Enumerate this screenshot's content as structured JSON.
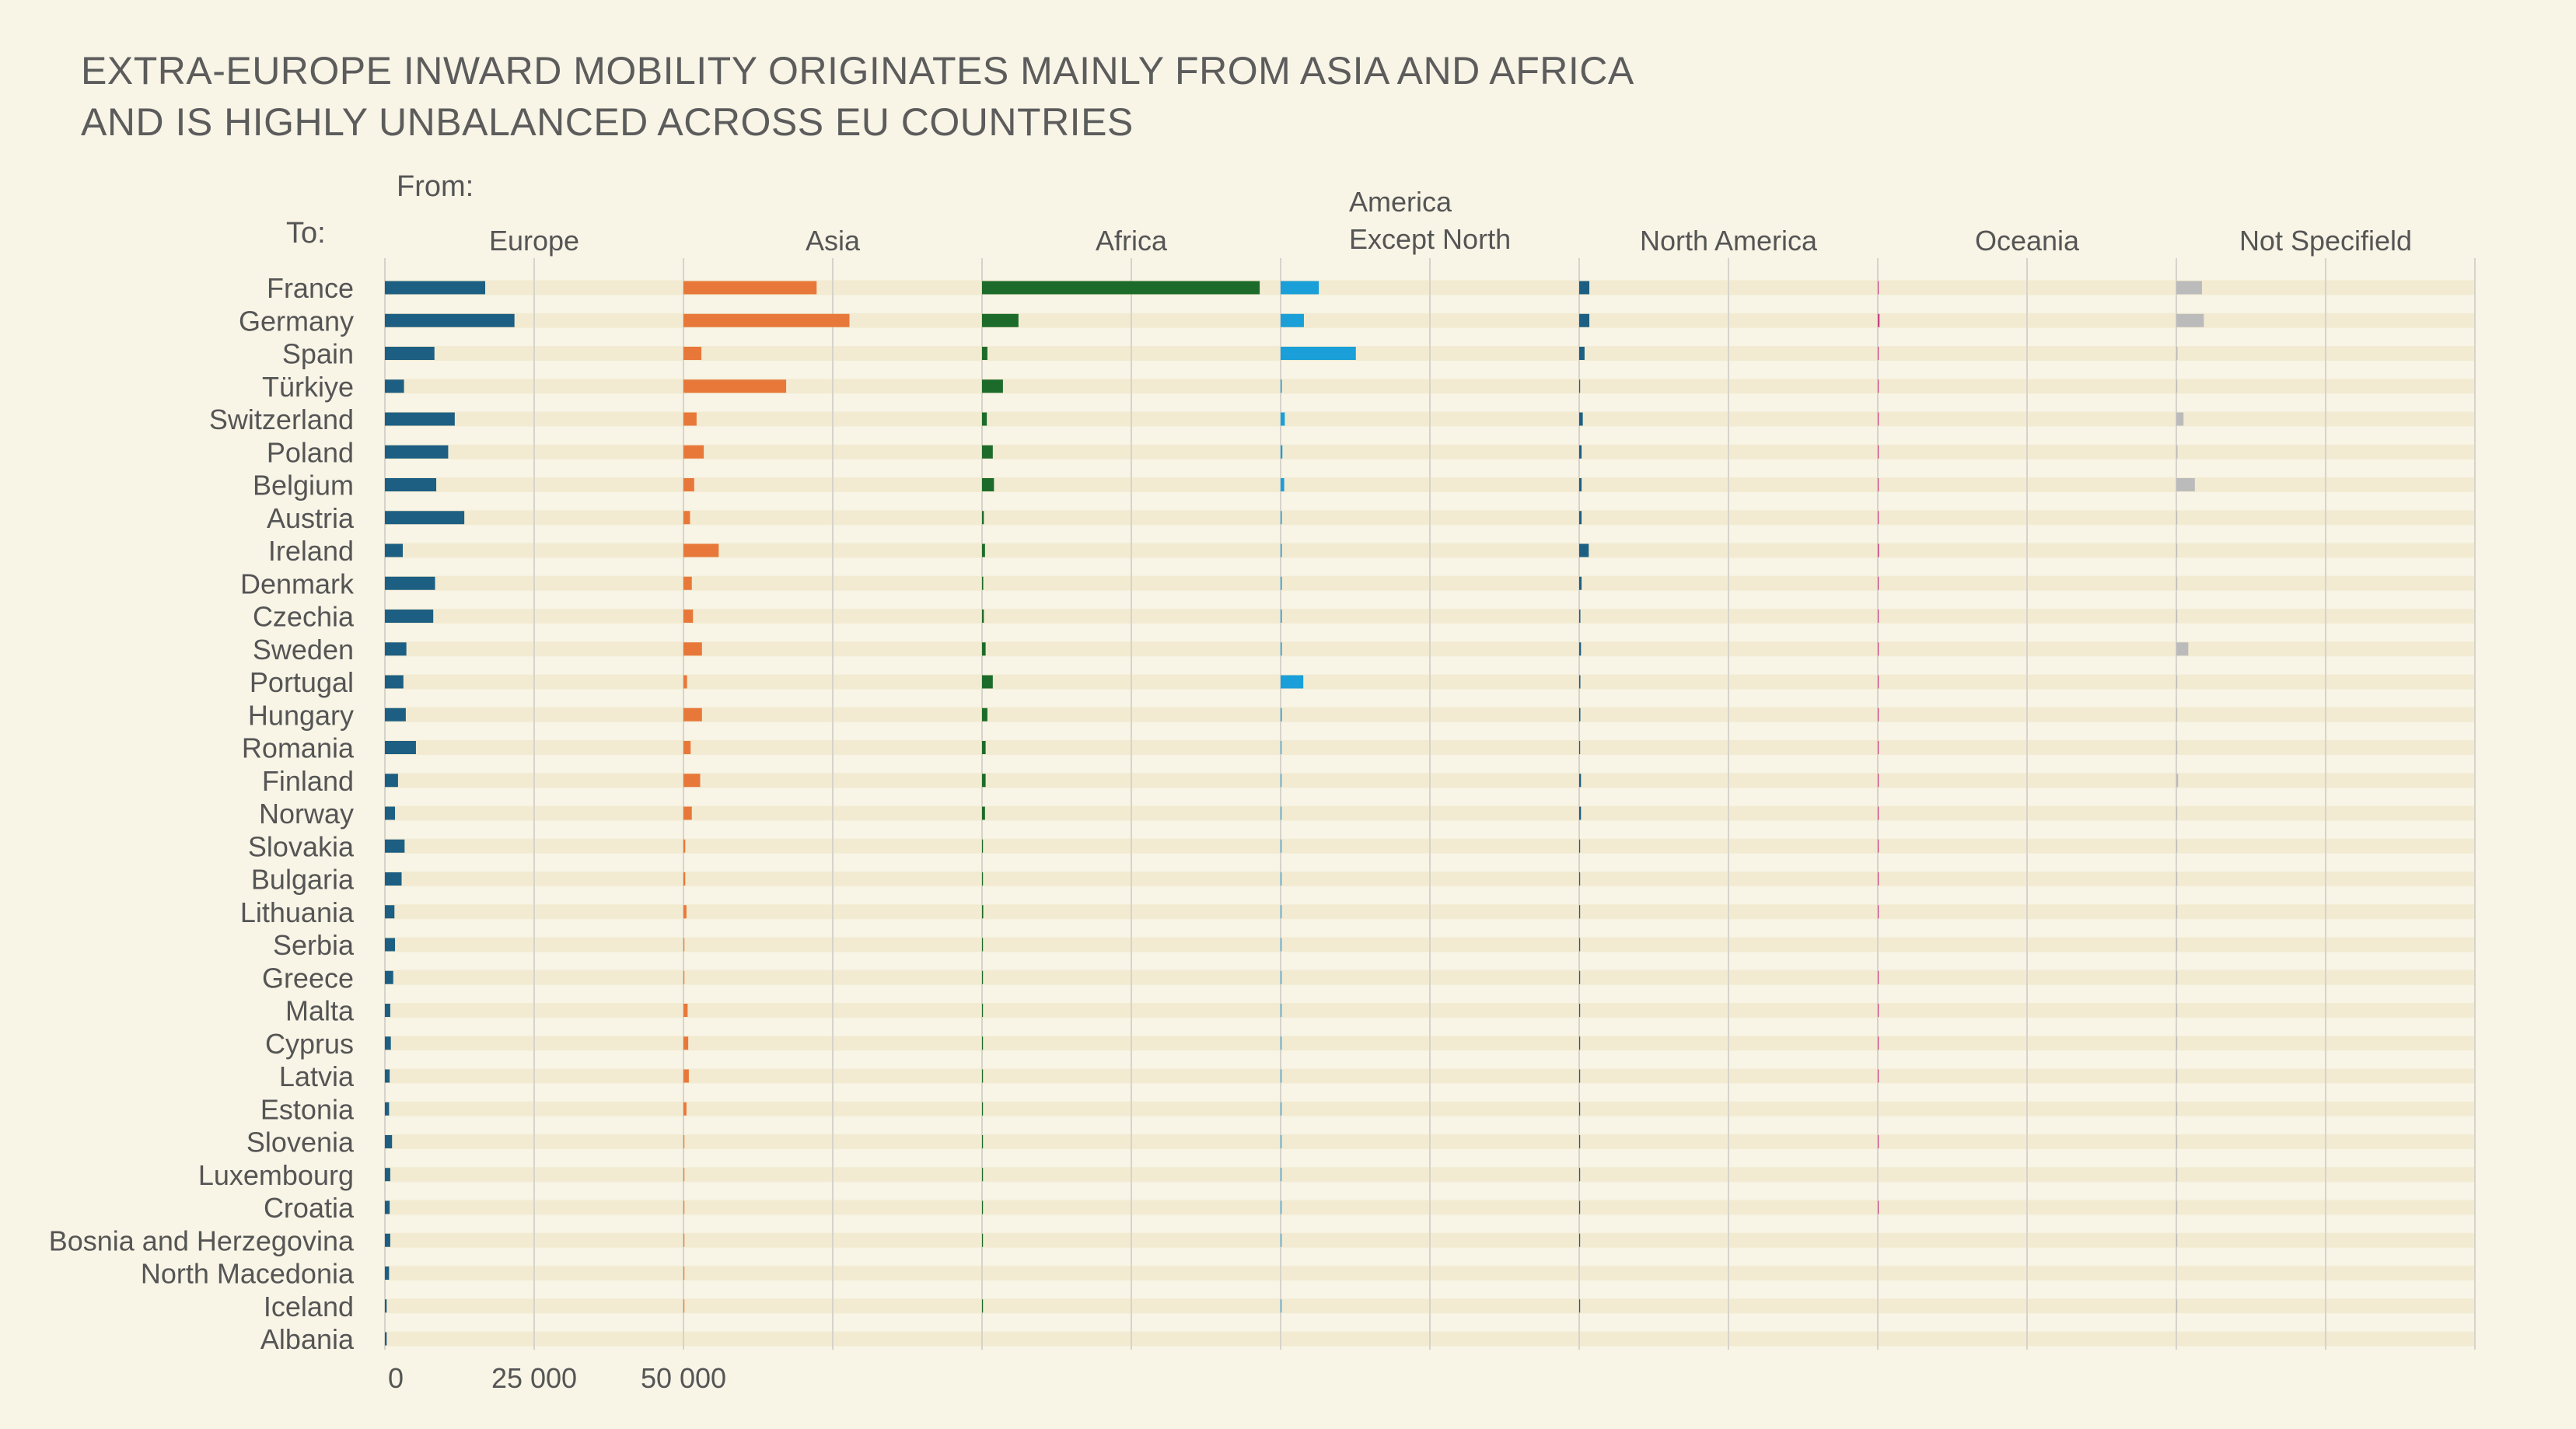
{
  "chart_data": {
    "type": "bar",
    "orientation": "horizontal",
    "layout": "small-multiples",
    "title_lines": [
      "EXTRA-EUROPE INWARD MOBILITY ORIGINATES MAINLY FROM ASIA AND AFRICA",
      "AND IS HIGHLY UNBALANCED ACROSS EU COUNTRIES"
    ],
    "from_label": "From:",
    "to_label": "To:",
    "x_ticks": [
      "0",
      "25 000",
      "50 000"
    ],
    "panel_max": 50000,
    "categories": [
      "France",
      "Germany",
      "Spain",
      "Türkiye",
      "Switzerland",
      "Poland",
      "Belgium",
      "Austria",
      "Ireland",
      "Denmark",
      "Czechia",
      "Sweden",
      "Portugal",
      "Hungary",
      "Romania",
      "Finland",
      "Norway",
      "Slovakia",
      "Bulgaria",
      "Lithuania",
      "Serbia",
      "Greece",
      "Malta",
      "Cyprus",
      "Latvia",
      "Estonia",
      "Slovenia",
      "Luxembourg",
      "Croatia",
      "Bosnia and Herzegovina",
      "North Macedonia",
      "Iceland",
      "Albania"
    ],
    "series": [
      {
        "name": "Europe",
        "color": "#1d5f82",
        "values": [
          16800,
          21700,
          8300,
          3200,
          11700,
          10600,
          8600,
          13300,
          3000,
          8400,
          8100,
          3600,
          3100,
          3500,
          5200,
          2200,
          1700,
          3300,
          2800,
          1600,
          1700,
          1400,
          900,
          1000,
          800,
          700,
          1200,
          900,
          800,
          900,
          700,
          300,
          300
        ]
      },
      {
        "name": "Asia",
        "color": "#e8783a",
        "values": [
          22300,
          27800,
          3000,
          17200,
          2200,
          3400,
          1800,
          1100,
          5900,
          1400,
          1600,
          3100,
          600,
          3100,
          1200,
          2800,
          1400,
          300,
          300,
          500,
          100,
          100,
          700,
          800,
          900,
          500,
          100,
          100,
          100,
          100,
          100,
          100,
          0
        ]
      },
      {
        "name": "Africa",
        "color": "#1d6b2a",
        "values": [
          46500,
          6100,
          900,
          3500,
          800,
          1800,
          2000,
          300,
          500,
          200,
          300,
          600,
          1800,
          900,
          600,
          600,
          500,
          100,
          100,
          200,
          100,
          100,
          100,
          100,
          100,
          100,
          100,
          100,
          100,
          100,
          0,
          100,
          0
        ]
      },
      {
        "name_lines": [
          "America",
          "Except North"
        ],
        "color": "#1a9fd8",
        "values": [
          6400,
          3900,
          12600,
          200,
          700,
          300,
          600,
          200,
          200,
          200,
          200,
          200,
          3800,
          200,
          100,
          100,
          100,
          100,
          100,
          100,
          100,
          100,
          100,
          100,
          100,
          100,
          100,
          100,
          100,
          100,
          0,
          100,
          0
        ]
      },
      {
        "name": "North America",
        "color": "#1d5f82",
        "values": [
          1700,
          1700,
          900,
          100,
          600,
          400,
          400,
          400,
          1600,
          400,
          200,
          300,
          200,
          200,
          100,
          300,
          300,
          100,
          100,
          100,
          100,
          100,
          100,
          100,
          100,
          100,
          100,
          100,
          100,
          100,
          0,
          100,
          0
        ]
      },
      {
        "name": "Oceania",
        "color": "#c2448a",
        "values": [
          100,
          300,
          100,
          100,
          100,
          100,
          100,
          100,
          200,
          100,
          100,
          100,
          100,
          100,
          100,
          100,
          100,
          100,
          100,
          100,
          0,
          100,
          100,
          100,
          100,
          0,
          100,
          0,
          100,
          0,
          0,
          0,
          0
        ]
      },
      {
        "name": "Not Specifield",
        "color": "#bbbbbb",
        "values": [
          4300,
          4600,
          200,
          100,
          1200,
          200,
          3100,
          100,
          100,
          100,
          100,
          2000,
          100,
          100,
          100,
          300,
          100,
          100,
          100,
          100,
          100,
          100,
          100,
          100,
          100,
          100,
          100,
          100,
          100,
          100,
          0,
          100,
          0
        ]
      }
    ],
    "colors": {
      "background": "#f8f4e6",
      "row_stripe": "#f2ebd2",
      "grid": "#d6d3cb",
      "text": "#555555"
    },
    "grid": true,
    "legend": "none (panel headers)"
  }
}
